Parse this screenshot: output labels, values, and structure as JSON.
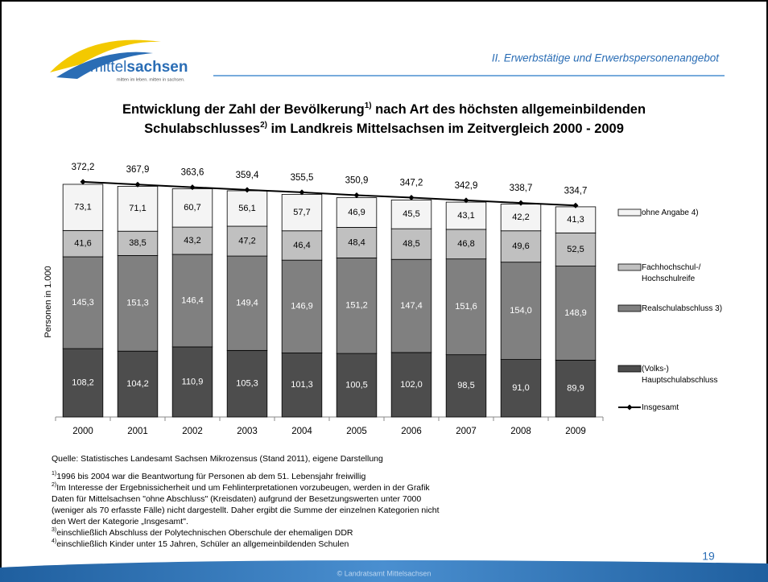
{
  "header": {
    "logo_text": [
      "mittel",
      "sachsen"
    ],
    "logo_tagline": "mitten im leben. mitten in sachsen.",
    "section": "II. Erwerbstätige und Erwerbspersonenangebot"
  },
  "chart_data": {
    "type": "bar",
    "stacked": true,
    "title": [
      [
        "Entwicklung der Zahl der Bevölkerung",
        "1)",
        " nach Art des höchsten allgemeinbildenden"
      ],
      [
        "Schulabschlusses",
        "2)",
        " im Landkreis Mittelsachsen im Zeitvergleich 2000 - 2009"
      ]
    ],
    "y_label": "Personen in 1.000",
    "categories": [
      "2000",
      "2001",
      "2002",
      "2003",
      "2004",
      "2005",
      "2006",
      "2007",
      "2008",
      "2009"
    ],
    "ylim": [
      0,
      400
    ],
    "series": [
      {
        "name": "(Volks-)\nHauptschulabschluss",
        "color": "#4d4d4d",
        "label_color": "#ffffff",
        "values": [
          108.2,
          104.2,
          110.9,
          105.3,
          101.3,
          100.5,
          102.0,
          98.5,
          91.0,
          89.9
        ],
        "value_labels": [
          "108,2",
          "104,2",
          "110,9",
          "105,3",
          "101,3",
          "100,5",
          "102,0",
          "98,5",
          "91,0",
          "89,9"
        ]
      },
      {
        "name": "Realschulabschluss 3)",
        "color": "#808080",
        "label_color": "#ffffff",
        "values": [
          145.3,
          151.3,
          146.4,
          149.4,
          146.9,
          151.2,
          147.4,
          151.6,
          154.0,
          148.9
        ],
        "value_labels": [
          "145,3",
          "151,3",
          "146,4",
          "149,4",
          "146,9",
          "151,2",
          "147,4",
          "151,6",
          "154,0",
          "148,9"
        ]
      },
      {
        "name": "Fachhochschul-/\nHochschulreife",
        "color": "#c0c0c0",
        "label_color": "#000000",
        "values": [
          41.6,
          38.5,
          43.2,
          47.2,
          46.4,
          48.4,
          48.5,
          46.8,
          49.6,
          52.5
        ],
        "value_labels": [
          "41,6",
          "38,5",
          "43,2",
          "47,2",
          "46,4",
          "48,4",
          "48,5",
          "46,8",
          "49,6",
          "52,5"
        ]
      },
      {
        "name": "ohne Angabe 4)",
        "color": "#f4f4f4",
        "label_color": "#000000",
        "values": [
          73.1,
          71.1,
          60.7,
          56.1,
          57.7,
          46.9,
          45.5,
          43.1,
          42.2,
          41.3
        ],
        "value_labels": [
          "73,1",
          "71,1",
          "60,7",
          "56,1",
          "57,7",
          "46,9",
          "45,5",
          "43,1",
          "42,2",
          "41,3"
        ]
      },
      {
        "name": "Insgesamt",
        "type": "line",
        "color": "#000000",
        "values": [
          372.2,
          367.9,
          363.6,
          359.4,
          355.5,
          350.9,
          347.2,
          342.9,
          338.7,
          334.7
        ],
        "value_labels": [
          "372,2",
          "367,9",
          "363,6",
          "359,4",
          "355,5",
          "350,9",
          "347,2",
          "342,9",
          "338,7",
          "334,7"
        ]
      }
    ],
    "legend": "right"
  },
  "notes": [
    {
      "text": "Quelle: Statistisches Landesamt Sachsen Mikrozensus (Stand 2011), eigene Darstellung"
    },
    {
      "sup": "1)",
      "text": "1996 bis 2004 war die Beantwortung für Personen ab dem 51. Lebensjahr freiwillig"
    },
    {
      "sup": "2)",
      "text": "Im Interesse der Ergebnissicherheit und um Fehlinterpretationen vorzubeugen, werden in der Grafik"
    },
    {
      "text": "Daten für Mittelsachsen \"ohne Abschluss\" (Kreisdaten) aufgrund der Besetzungswerten unter 7000"
    },
    {
      "text": "(weniger als 70 erfasste Fälle) nicht dargestellt. Daher ergibt die Summe der einzelnen Kategorien nicht"
    },
    {
      "text": "den Wert der Kategorie „Insgesamt\"."
    },
    {
      "sup": "3)",
      "text": "einschließlich Abschluss der Polytechnischen Oberschule der ehemaligen DDR"
    },
    {
      "sup": "4)",
      "text": "einschließlich Kinder unter 15 Jahren, Schüler an allgemeinbildenden Schulen"
    }
  ],
  "footer": {
    "page": "19",
    "copyright": "© Landratsamt Mittelsachsen"
  }
}
